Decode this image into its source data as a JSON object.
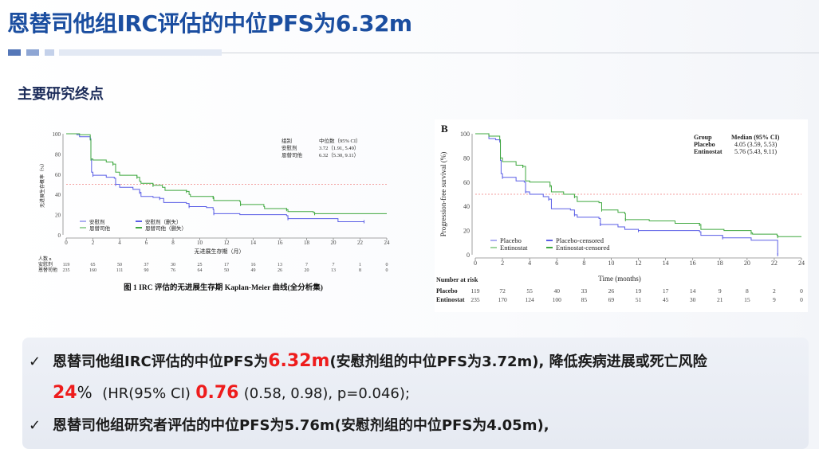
{
  "header": {
    "title": "恩替司他组IRC评估的中位PFS为6.32m",
    "section": "主要研究终点"
  },
  "colors": {
    "title": "#1b4ea0",
    "placebo": "#5a5ee6",
    "treatment": "#3fa83f",
    "median_line": "#f08080",
    "highlight": "#ee1c1c"
  },
  "chart_data": [
    {
      "type": "line",
      "subtype": "kaplan-meier step",
      "ylabel": "无进展生存概率（%）",
      "xlabel": "无进展生存期（月）",
      "xlim": [
        0,
        24
      ],
      "ylim": [
        0,
        100
      ],
      "xticks": [
        0,
        2,
        4,
        6,
        8,
        10,
        12,
        14,
        16,
        18,
        20,
        22,
        24
      ],
      "yticks": [
        0,
        20,
        40,
        60,
        80,
        100
      ],
      "reference_line": 50,
      "median_table": {
        "headers": [
          "组别",
          "中位数（95% CI）"
        ],
        "rows": [
          [
            "安慰剂",
            "3.72（1.91, 5.49）"
          ],
          [
            "恩替司他",
            "6.32（5.30, 9.11）"
          ]
        ]
      },
      "legend": [
        "安慰剂",
        "恩替司他",
        "安慰剂（删失）",
        "恩替司他（删失）"
      ],
      "legend_placement": "bottom-left",
      "series": [
        {
          "name": "安慰剂",
          "color": "#5a5ee6",
          "points": [
            [
              0,
              100
            ],
            [
              0.8,
              99
            ],
            [
              1,
              97
            ],
            [
              1.8,
              95
            ],
            [
              1.85,
              75
            ],
            [
              1.9,
              62
            ],
            [
              2,
              59
            ],
            [
              3,
              57
            ],
            [
              3.6,
              56
            ],
            [
              3.7,
              50
            ],
            [
              4,
              47
            ],
            [
              5,
              45
            ],
            [
              5.5,
              42
            ],
            [
              5.6,
              38
            ],
            [
              6.5,
              37
            ],
            [
              7,
              36
            ],
            [
              7.3,
              32
            ],
            [
              9,
              31
            ],
            [
              9.2,
              28
            ],
            [
              10.5,
              27
            ],
            [
              11,
              25
            ],
            [
              11.05,
              21
            ],
            [
              13,
              20
            ],
            [
              16.5,
              19
            ],
            [
              16.6,
              16
            ],
            [
              20.3,
              16
            ],
            [
              20.35,
              13
            ],
            [
              22.3,
              13
            ]
          ]
        },
        {
          "name": "恩替司他",
          "color": "#3fa83f",
          "points": [
            [
              0,
              100
            ],
            [
              1,
              99
            ],
            [
              1.8,
              94
            ],
            [
              1.85,
              75
            ],
            [
              2,
              74
            ],
            [
              3,
              72
            ],
            [
              3.5,
              70
            ],
            [
              3.7,
              62
            ],
            [
              4,
              59
            ],
            [
              5.3,
              57
            ],
            [
              5.5,
              53
            ],
            [
              5.6,
              51
            ],
            [
              6.5,
              49
            ],
            [
              7.2,
              47
            ],
            [
              7.4,
              44
            ],
            [
              9,
              43
            ],
            [
              9.2,
              40
            ],
            [
              9.3,
              38
            ],
            [
              11,
              37
            ],
            [
              11.05,
              34
            ],
            [
              13,
              33
            ],
            [
              13.05,
              30
            ],
            [
              14.8,
              28
            ],
            [
              14.85,
              26
            ],
            [
              16.5,
              25
            ],
            [
              16.6,
              23
            ],
            [
              18.5,
              22
            ],
            [
              18.6,
              21
            ],
            [
              24,
              21
            ]
          ]
        }
      ],
      "risk_table": {
        "header": "人数 n",
        "rows": [
          {
            "label": "安慰剂",
            "values": [
              119,
              65,
              50,
              37,
              30,
              25,
              17,
              16,
              13,
              7,
              7,
              1,
              0
            ]
          },
          {
            "label": "恩替司他",
            "values": [
              235,
              160,
              111,
              90,
              76,
              64,
              50,
              49,
              26,
              20,
              13,
              8,
              0
            ]
          }
        ]
      },
      "caption": "图 1 IRC 评估的无进展生存期 Kaplan-Meier 曲线(全分析集)"
    },
    {
      "type": "line",
      "subtype": "kaplan-meier step",
      "panel_label": "B",
      "ylabel": "Progression-free survival (%)",
      "xlabel": "Time (months)",
      "xlim": [
        0,
        24
      ],
      "ylim": [
        0,
        100
      ],
      "xticks": [
        0,
        2,
        4,
        6,
        8,
        10,
        12,
        14,
        16,
        18,
        20,
        22,
        24
      ],
      "yticks": [
        0,
        20,
        40,
        60,
        80,
        100
      ],
      "reference_line": 50,
      "median_table": {
        "headers": [
          "Group",
          "Median (95% CI)"
        ],
        "rows": [
          [
            "Placebo",
            "4.05 (3.59, 5.53)"
          ],
          [
            "Entinostat",
            "5.76 (5.43, 9.11)"
          ]
        ]
      },
      "legend": [
        "Placebo",
        "Entinostat",
        "Placebo-censored",
        "Entinostat-censored"
      ],
      "legend_placement": "bottom-left",
      "series": [
        {
          "name": "Placebo",
          "color": "#5a5ee6",
          "points": [
            [
              0,
              100
            ],
            [
              1,
              96
            ],
            [
              1.5,
              95
            ],
            [
              1.8,
              94
            ],
            [
              1.85,
              78
            ],
            [
              1.9,
              67
            ],
            [
              2,
              64
            ],
            [
              3,
              61
            ],
            [
              3.6,
              60
            ],
            [
              3.7,
              52
            ],
            [
              4,
              50
            ],
            [
              5,
              48
            ],
            [
              5.4,
              46
            ],
            [
              5.6,
              38
            ],
            [
              7,
              37
            ],
            [
              7.3,
              33
            ],
            [
              7.5,
              31
            ],
            [
              9.1,
              30
            ],
            [
              9.2,
              25
            ],
            [
              10.5,
              23
            ],
            [
              11,
              21
            ],
            [
              12,
              20
            ],
            [
              16.5,
              19
            ],
            [
              16.6,
              16
            ],
            [
              18.2,
              14
            ],
            [
              20.3,
              12
            ],
            [
              22.2,
              12
            ],
            [
              22.25,
              0
            ]
          ]
        },
        {
          "name": "Entinostat",
          "color": "#3fa83f",
          "points": [
            [
              0,
              100
            ],
            [
              1,
              98
            ],
            [
              1.8,
              95
            ],
            [
              1.85,
              80
            ],
            [
              2,
              77
            ],
            [
              3,
              74
            ],
            [
              3.5,
              73
            ],
            [
              3.7,
              61
            ],
            [
              4,
              60
            ],
            [
              5.5,
              57
            ],
            [
              5.6,
              52
            ],
            [
              6.5,
              50
            ],
            [
              7.3,
              48
            ],
            [
              7.5,
              44
            ],
            [
              9.1,
              43
            ],
            [
              9.3,
              37
            ],
            [
              10.5,
              35
            ],
            [
              11,
              34
            ],
            [
              11.05,
              29
            ],
            [
              12.8,
              28
            ],
            [
              14.7,
              26
            ],
            [
              16.5,
              25
            ],
            [
              16.6,
              21
            ],
            [
              18.3,
              20
            ],
            [
              20.3,
              18
            ],
            [
              20.4,
              17
            ],
            [
              22.2,
              16
            ],
            [
              22.25,
              15
            ],
            [
              24,
              15
            ]
          ]
        }
      ],
      "risk_table": {
        "header": "Number at risk",
        "rows": [
          {
            "label": "Placebo",
            "values": [
              119,
              72,
              55,
              40,
              33,
              26,
              19,
              17,
              14,
              9,
              8,
              2,
              0
            ]
          },
          {
            "label": "Entinostat",
            "values": [
              235,
              170,
              124,
              100,
              85,
              69,
              51,
              45,
              30,
              21,
              15,
              9,
              0
            ]
          }
        ]
      }
    }
  ],
  "summary": {
    "bullet": "✓",
    "line1_a": "恩替司他组IRC评估的中位PFS为",
    "line1_hl": "6.32m",
    "line1_b": "(安慰剂组的中位PFS为3.72m), 降低疾病进展或死亡风险",
    "line2_hl1": "24",
    "line2_pct": "%",
    "line2_a": "(HR(95% CI)",
    "line2_hl2": "0.76",
    "line2_b": "(0.58, 0.98), p=0.046);",
    "line3": "恩替司他组研究者评估的中位PFS为5.76m(安慰剂组的中位PFS为4.05m),"
  }
}
